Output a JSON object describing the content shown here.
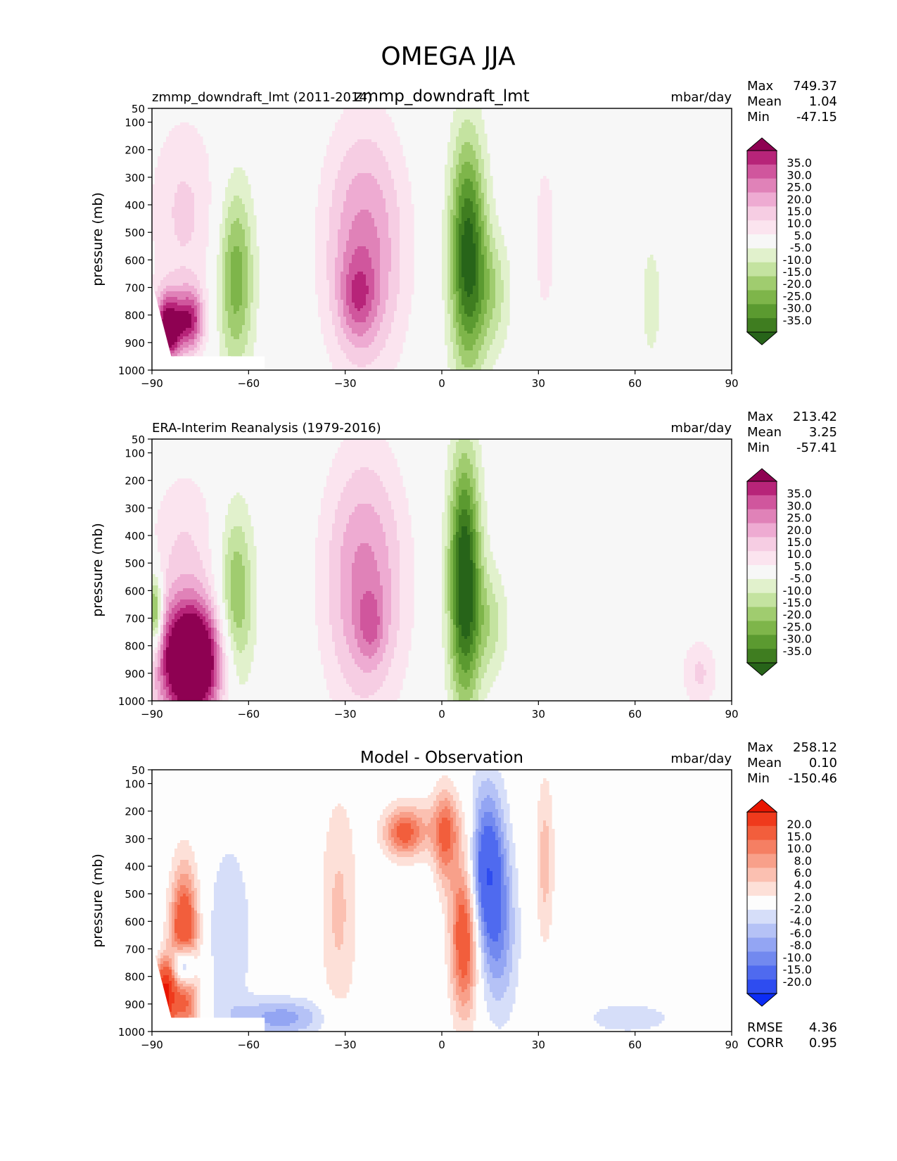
{
  "figure_title": "OMEGA JJA",
  "colors": {
    "frame": "#000000",
    "plot_bg": "#f7f7f7",
    "diff_bg": "#fdfdfd",
    "pos_dark": "#8e0152",
    "neg_dark": "#276419"
  },
  "panels": [
    {
      "left_title": "zmmp_downdraft_lmt (2011-2014)",
      "center_title": "zmmp_downdraft_lmt",
      "units": "mbar/day",
      "stats": [
        {
          "label": "Max",
          "value": "749.37"
        },
        {
          "label": "Mean",
          "value": "1.04"
        },
        {
          "label": "Min",
          "value": "-47.15"
        }
      ],
      "colorbar_labels": [
        "35.0",
        "30.0",
        "25.0",
        "20.0",
        "15.0",
        "10.0",
        "5.0",
        "-5.0",
        "-10.0",
        "-15.0",
        "-20.0",
        "-25.0",
        "-30.0",
        "-35.0"
      ]
    },
    {
      "left_title": "ERA-Interim Reanalysis (1979-2016)",
      "center_title": "",
      "units": "mbar/day",
      "stats": [
        {
          "label": "Max",
          "value": "213.42"
        },
        {
          "label": "Mean",
          "value": "3.25"
        },
        {
          "label": "Min",
          "value": "-57.41"
        }
      ],
      "colorbar_labels": [
        "35.0",
        "30.0",
        "25.0",
        "20.0",
        "15.0",
        "10.0",
        "5.0",
        "-5.0",
        "-10.0",
        "-15.0",
        "-20.0",
        "-25.0",
        "-30.0",
        "-35.0"
      ]
    },
    {
      "left_title": "",
      "center_title": "Model - Observation",
      "units": "mbar/day",
      "stats": [
        {
          "label": "Max",
          "value": "258.12"
        },
        {
          "label": "Mean",
          "value": "0.10"
        },
        {
          "label": "Min",
          "value": "-150.46"
        }
      ],
      "extra_stats": [
        {
          "label": "RMSE",
          "value": "4.36"
        },
        {
          "label": "CORR",
          "value": "0.95"
        }
      ],
      "colorbar_labels": [
        "20.0",
        "15.0",
        "10.0",
        "8.0",
        "6.0",
        "4.0",
        "2.0",
        "-2.0",
        "-4.0",
        "-6.0",
        "-8.0",
        "-10.0",
        "-15.0",
        "-20.0"
      ]
    }
  ],
  "chart_data": [
    {
      "type": "heatmap",
      "title": "zmmp_downdraft_lmt",
      "subtitle": "zmmp_downdraft_lmt (2011-2014)",
      "xlabel": "",
      "ylabel": "pressure (mb)",
      "x_ticks": [
        -90,
        -60,
        -30,
        0,
        30,
        60,
        90
      ],
      "x_tick_labels": [
        "−90",
        "−60",
        "−30",
        "0",
        "30",
        "60",
        "90"
      ],
      "y_ticks": [
        50,
        100,
        200,
        300,
        400,
        500,
        600,
        700,
        800,
        900,
        1000
      ],
      "y_tick_labels": [
        "50",
        "100",
        "200",
        "300",
        "400",
        "500",
        "600",
        "700",
        "800",
        "900",
        "1000"
      ],
      "xlim": [
        -90,
        90
      ],
      "ylim": [
        1000,
        50
      ],
      "colorscale": "PiYG",
      "levels": [
        -35,
        -30,
        -25,
        -20,
        -15,
        -10,
        -5,
        5,
        10,
        15,
        20,
        25,
        30,
        35
      ],
      "colors": [
        "#276419",
        "#3f7d20",
        "#5b9a30",
        "#7eb54a",
        "#a0cc6f",
        "#c4e3a0",
        "#e1f1cc",
        "#f7f7f7",
        "#fbe4ef",
        "#f6cde3",
        "#eeabd2",
        "#e082b8",
        "#d0569d",
        "#b72479",
        "#8e0152"
      ],
      "features": [
        {
          "name": "descent",
          "lat": -85,
          "p": 850,
          "lat_sd": 3,
          "p_sd": 90,
          "amp": 42
        },
        {
          "name": "descent",
          "lat": -78,
          "p": 820,
          "lat_sd": 3,
          "p_sd": 80,
          "amp": 30
        },
        {
          "name": "descent",
          "lat": -80,
          "p": 430,
          "lat_sd": 8,
          "p_sd": 260,
          "amp": 11
        },
        {
          "name": "ascent",
          "lat": -64,
          "p": 660,
          "lat_sd": 4,
          "p_sd": 240,
          "amp": -24
        },
        {
          "name": "descent",
          "lat": -24,
          "p": 560,
          "lat_sd": 9,
          "p_sd": 320,
          "amp": 22
        },
        {
          "name": "descent",
          "lat": -26,
          "p": 740,
          "lat_sd": 4,
          "p_sd": 110,
          "amp": 14
        },
        {
          "name": "ascent",
          "lat": 8,
          "p": 580,
          "lat_sd": 4,
          "p_sd": 300,
          "amp": -38
        },
        {
          "name": "ascent",
          "lat": 16,
          "p": 720,
          "lat_sd": 4,
          "p_sd": 160,
          "amp": -12
        },
        {
          "name": "descent",
          "lat": 32,
          "p": 520,
          "lat_sd": 3,
          "p_sd": 280,
          "amp": 7
        },
        {
          "name": "ascent",
          "lat": 65,
          "p": 750,
          "lat_sd": 3,
          "p_sd": 200,
          "amp": -7
        }
      ]
    },
    {
      "type": "heatmap",
      "title": "ERA-Interim Reanalysis (1979-2016)",
      "xlabel": "",
      "ylabel": "pressure (mb)",
      "x_ticks": [
        -90,
        -60,
        -30,
        0,
        30,
        60,
        90
      ],
      "x_tick_labels": [
        "−90",
        "−60",
        "−30",
        "0",
        "30",
        "60",
        "90"
      ],
      "y_ticks": [
        50,
        100,
        200,
        300,
        400,
        500,
        600,
        700,
        800,
        900,
        1000
      ],
      "y_tick_labels": [
        "50",
        "100",
        "200",
        "300",
        "400",
        "500",
        "600",
        "700",
        "800",
        "900",
        "1000"
      ],
      "xlim": [
        -90,
        90
      ],
      "ylim": [
        1000,
        50
      ],
      "colorscale": "PiYG",
      "levels": [
        -35,
        -30,
        -25,
        -20,
        -15,
        -10,
        -5,
        5,
        10,
        15,
        20,
        25,
        30,
        35
      ],
      "colors": [
        "#276419",
        "#3f7d20",
        "#5b9a30",
        "#7eb54a",
        "#a0cc6f",
        "#c4e3a0",
        "#e1f1cc",
        "#f7f7f7",
        "#fbe4ef",
        "#f6cde3",
        "#eeabd2",
        "#e082b8",
        "#d0569d",
        "#b72479",
        "#8e0152"
      ],
      "features": [
        {
          "name": "descent",
          "lat": -78,
          "p": 860,
          "lat_sd": 7,
          "p_sd": 150,
          "amp": 60
        },
        {
          "name": "descent",
          "lat": -80,
          "p": 450,
          "lat_sd": 8,
          "p_sd": 220,
          "amp": 10
        },
        {
          "name": "ascent",
          "lat": -64,
          "p": 640,
          "lat_sd": 4,
          "p_sd": 240,
          "amp": -22
        },
        {
          "name": "descent",
          "lat": -24,
          "p": 570,
          "lat_sd": 9,
          "p_sd": 330,
          "amp": 22
        },
        {
          "name": "descent",
          "lat": -22,
          "p": 730,
          "lat_sd": 3,
          "p_sd": 90,
          "amp": 10
        },
        {
          "name": "ascent",
          "lat": 7,
          "p": 560,
          "lat_sd": 3.5,
          "p_sd": 320,
          "amp": -42
        },
        {
          "name": "ascent",
          "lat": 15,
          "p": 720,
          "lat_sd": 4,
          "p_sd": 150,
          "amp": -12
        },
        {
          "name": "descent",
          "lat": 80,
          "p": 900,
          "lat_sd": 4,
          "p_sd": 90,
          "amp": 11
        },
        {
          "name": "ascent",
          "lat": -89,
          "p": 680,
          "lat_sd": 1.5,
          "p_sd": 100,
          "amp": -30
        }
      ]
    },
    {
      "type": "heatmap",
      "title": "Model - Observation",
      "xlabel": "",
      "ylabel": "pressure (mb)",
      "x_ticks": [
        -90,
        -60,
        -30,
        0,
        30,
        60,
        90
      ],
      "x_tick_labels": [
        "−90",
        "−60",
        "−30",
        "0",
        "30",
        "60",
        "90"
      ],
      "y_ticks": [
        50,
        100,
        200,
        300,
        400,
        500,
        600,
        700,
        800,
        900,
        1000
      ],
      "y_tick_labels": [
        "50",
        "100",
        "200",
        "300",
        "400",
        "500",
        "600",
        "700",
        "800",
        "900",
        "1000"
      ],
      "xlim": [
        -90,
        90
      ],
      "ylim": [
        1000,
        50
      ],
      "colorscale": "bwr",
      "levels": [
        -20,
        -15,
        -10,
        -8,
        -6,
        -4,
        -2,
        2,
        4,
        6,
        8,
        10,
        15,
        20
      ],
      "colors": [
        "#0c2cf5",
        "#2e4cf0",
        "#4f6aef",
        "#7289ef",
        "#93a5f3",
        "#b5c2f6",
        "#d6def9",
        "#fdfdfd",
        "#fde0d8",
        "#fbc0b1",
        "#f8a08a",
        "#f57f63",
        "#f25e3c",
        "#ef3a1c",
        "#e81500"
      ],
      "features": [
        {
          "name": "positive",
          "lat": -80,
          "p": 720,
          "lat_sd": 3,
          "p_sd": 200,
          "amp": 18
        },
        {
          "name": "positive",
          "lat": -86,
          "p": 870,
          "lat_sd": 2,
          "p_sd": 80,
          "amp": 22
        },
        {
          "name": "negative",
          "lat": -80,
          "p": 760,
          "lat_sd": 2.5,
          "p_sd": 60,
          "amp": -20
        },
        {
          "name": "negative",
          "lat": -66,
          "p": 650,
          "lat_sd": 5,
          "p_sd": 250,
          "amp": -4
        },
        {
          "name": "negative",
          "lat": -50,
          "p": 950,
          "lat_sd": 10,
          "p_sd": 50,
          "amp": -7
        },
        {
          "name": "positive",
          "lat": -32,
          "p": 560,
          "lat_sd": 4,
          "p_sd": 300,
          "amp": 4.5
        },
        {
          "name": "positive",
          "lat": -12,
          "p": 280,
          "lat_sd": 4,
          "p_sd": 60,
          "amp": 9
        },
        {
          "name": "positive",
          "lat": -3,
          "p": 260,
          "lat_sd": 10,
          "p_sd": 80,
          "amp": 4
        },
        {
          "name": "positive",
          "lat": 1,
          "p": 300,
          "lat_sd": 2.5,
          "p_sd": 130,
          "amp": 8
        },
        {
          "name": "positive",
          "lat": 7,
          "p": 650,
          "lat_sd": 3,
          "p_sd": 200,
          "amp": 14
        },
        {
          "name": "negative",
          "lat": 14,
          "p": 400,
          "lat_sd": 4,
          "p_sd": 200,
          "amp": -14
        },
        {
          "name": "negative",
          "lat": 18,
          "p": 680,
          "lat_sd": 4,
          "p_sd": 200,
          "amp": -6
        },
        {
          "name": "positive",
          "lat": 32,
          "p": 380,
          "lat_sd": 2,
          "p_sd": 220,
          "amp": 5
        },
        {
          "name": "negative",
          "lat": 58,
          "p": 950,
          "lat_sd": 12,
          "p_sd": 50,
          "amp": -3
        }
      ]
    }
  ]
}
